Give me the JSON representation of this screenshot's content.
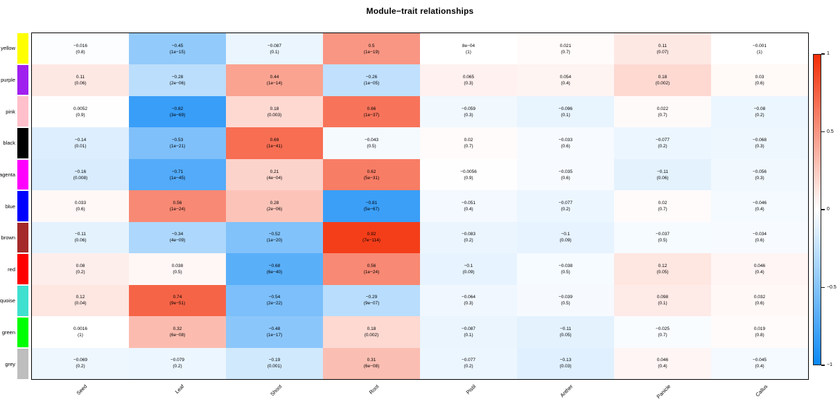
{
  "title": "Module−trait relationships",
  "colorbar": {
    "tick_labels": [
      "1",
      "0.5",
      "0",
      "−0.5",
      "−1"
    ],
    "tick_values": [
      1,
      0.5,
      0,
      -0.5,
      -1
    ],
    "max_color": "#F32D06",
    "mid_color": "#FFFFFF",
    "min_color": "#0D89F6"
  },
  "chart_data": {
    "type": "heatmap",
    "title": "Module−trait relationships",
    "legend_position": "right",
    "value_range": [
      -1,
      1
    ],
    "columns": [
      "Seed",
      "Leaf",
      "Shoot",
      "Root",
      "Pistil",
      "Anther",
      "Panicle",
      "Callus"
    ],
    "rows": [
      {
        "module": "yellow",
        "module_color": "#FFFF00",
        "cells": [
          {
            "value": -0.016,
            "cor": "−0.016",
            "p": "(0.8)"
          },
          {
            "value": -0.45,
            "cor": "−0.45",
            "p": "(1e−15)"
          },
          {
            "value": -0.087,
            "cor": "−0.087",
            "p": "(0.1)"
          },
          {
            "value": 0.5,
            "cor": "0.5",
            "p": "(1e−19)"
          },
          {
            "value": 0.0008,
            "cor": "8e−04",
            "p": "(1)"
          },
          {
            "value": 0.021,
            "cor": "0.021",
            "p": "(0.7)"
          },
          {
            "value": 0.11,
            "cor": "0.11",
            "p": "(0.07)"
          },
          {
            "value": -0.001,
            "cor": "−0.001",
            "p": "(1)"
          }
        ]
      },
      {
        "module": "purple",
        "module_color": "#A020F0",
        "cells": [
          {
            "value": 0.11,
            "cor": "0.11",
            "p": "(0.06)"
          },
          {
            "value": -0.28,
            "cor": "−0.28",
            "p": "(2e−06)"
          },
          {
            "value": 0.44,
            "cor": "0.44",
            "p": "(1e−14)"
          },
          {
            "value": -0.26,
            "cor": "−0.26",
            "p": "(1e−05)"
          },
          {
            "value": 0.065,
            "cor": "0.065",
            "p": "(0.3)"
          },
          {
            "value": 0.054,
            "cor": "0.054",
            "p": "(0.4)"
          },
          {
            "value": 0.18,
            "cor": "0.18",
            "p": "(0.002)"
          },
          {
            "value": 0.03,
            "cor": "0.03",
            "p": "(0.6)"
          }
        ]
      },
      {
        "module": "pink",
        "module_color": "#FFC0CB",
        "cells": [
          {
            "value": 0.0052,
            "cor": "0.0052",
            "p": "(0.9)"
          },
          {
            "value": -0.82,
            "cor": "−0.82",
            "p": "(3e−69)"
          },
          {
            "value": 0.18,
            "cor": "0.18",
            "p": "(0.003)"
          },
          {
            "value": 0.66,
            "cor": "0.66",
            "p": "(1e−37)"
          },
          {
            "value": -0.059,
            "cor": "−0.059",
            "p": "(0.3)"
          },
          {
            "value": -0.096,
            "cor": "−0.096",
            "p": "(0.1)"
          },
          {
            "value": 0.022,
            "cor": "0.022",
            "p": "(0.7)"
          },
          {
            "value": -0.08,
            "cor": "−0.08",
            "p": "(0.2)"
          }
        ]
      },
      {
        "module": "black",
        "module_color": "#000000",
        "cells": [
          {
            "value": -0.14,
            "cor": "−0.14",
            "p": "(0.01)"
          },
          {
            "value": -0.53,
            "cor": "−0.53",
            "p": "(1e−21)"
          },
          {
            "value": 0.69,
            "cor": "0.69",
            "p": "(1e−41)"
          },
          {
            "value": -0.043,
            "cor": "−0.043",
            "p": "(0.5)"
          },
          {
            "value": 0.02,
            "cor": "0.02",
            "p": "(0.7)"
          },
          {
            "value": -0.033,
            "cor": "−0.033",
            "p": "(0.6)"
          },
          {
            "value": -0.077,
            "cor": "−0.077",
            "p": "(0.2)"
          },
          {
            "value": -0.068,
            "cor": "−0.068",
            "p": "(0.3)"
          }
        ]
      },
      {
        "module": "magenta",
        "module_color": "#FF00FF",
        "cells": [
          {
            "value": -0.16,
            "cor": "−0.16",
            "p": "(0.008)"
          },
          {
            "value": -0.71,
            "cor": "−0.71",
            "p": "(1e−45)"
          },
          {
            "value": 0.21,
            "cor": "0.21",
            "p": "(4e−04)"
          },
          {
            "value": 0.62,
            "cor": "0.62",
            "p": "(5e−31)"
          },
          {
            "value": -0.0056,
            "cor": "−0.0056",
            "p": "(0.9)"
          },
          {
            "value": -0.035,
            "cor": "−0.035",
            "p": "(0.6)"
          },
          {
            "value": -0.11,
            "cor": "−0.11",
            "p": "(0.06)"
          },
          {
            "value": -0.056,
            "cor": "−0.056",
            "p": "(0.3)"
          }
        ]
      },
      {
        "module": "blue",
        "module_color": "#0000FF",
        "cells": [
          {
            "value": 0.033,
            "cor": "0.033",
            "p": "(0.6)"
          },
          {
            "value": 0.56,
            "cor": "0.56",
            "p": "(1e−24)"
          },
          {
            "value": 0.28,
            "cor": "0.28",
            "p": "(2e−06)"
          },
          {
            "value": -0.81,
            "cor": "−0.81",
            "p": "(5e−67)"
          },
          {
            "value": -0.051,
            "cor": "−0.051",
            "p": "(0.4)"
          },
          {
            "value": -0.077,
            "cor": "−0.077",
            "p": "(0.2)"
          },
          {
            "value": 0.02,
            "cor": "0.02",
            "p": "(0.7)"
          },
          {
            "value": -0.046,
            "cor": "−0.046",
            "p": "(0.4)"
          }
        ]
      },
      {
        "module": "brown",
        "module_color": "#A52A2A",
        "cells": [
          {
            "value": -0.11,
            "cor": "−0.11",
            "p": "(0.06)"
          },
          {
            "value": -0.34,
            "cor": "−0.34",
            "p": "(4e−09)"
          },
          {
            "value": -0.52,
            "cor": "−0.52",
            "p": "(1e−20)"
          },
          {
            "value": 0.92,
            "cor": "0.92",
            "p": "(7e−114)"
          },
          {
            "value": -0.083,
            "cor": "−0.083",
            "p": "(0.2)"
          },
          {
            "value": -0.1,
            "cor": "−0.1",
            "p": "(0.09)"
          },
          {
            "value": -0.037,
            "cor": "−0.037",
            "p": "(0.5)"
          },
          {
            "value": -0.034,
            "cor": "−0.034",
            "p": "(0.6)"
          }
        ]
      },
      {
        "module": "red",
        "module_color": "#FF0000",
        "cells": [
          {
            "value": 0.08,
            "cor": "0.08",
            "p": "(0.2)"
          },
          {
            "value": 0.038,
            "cor": "0.038",
            "p": "(0.5)"
          },
          {
            "value": -0.68,
            "cor": "−0.68",
            "p": "(6e−40)"
          },
          {
            "value": 0.56,
            "cor": "0.56",
            "p": "(1e−24)"
          },
          {
            "value": -0.1,
            "cor": "−0.1",
            "p": "(0.09)"
          },
          {
            "value": -0.038,
            "cor": "−0.038",
            "p": "(0.5)"
          },
          {
            "value": 0.12,
            "cor": "0.12",
            "p": "(0.05)"
          },
          {
            "value": 0.046,
            "cor": "0.046",
            "p": "(0.4)"
          }
        ]
      },
      {
        "module": "turquoise",
        "module_color": "#40E0D0",
        "cells": [
          {
            "value": 0.12,
            "cor": "0.12",
            "p": "(0.04)"
          },
          {
            "value": 0.74,
            "cor": "0.74",
            "p": "(9e−51)"
          },
          {
            "value": -0.54,
            "cor": "−0.54",
            "p": "(2e−22)"
          },
          {
            "value": -0.29,
            "cor": "−0.29",
            "p": "(9e−07)"
          },
          {
            "value": -0.064,
            "cor": "−0.064",
            "p": "(0.3)"
          },
          {
            "value": -0.039,
            "cor": "−0.039",
            "p": "(0.5)"
          },
          {
            "value": 0.098,
            "cor": "0.098",
            "p": "(0.1)"
          },
          {
            "value": 0.032,
            "cor": "0.032",
            "p": "(0.6)"
          }
        ]
      },
      {
        "module": "green",
        "module_color": "#00FF00",
        "cells": [
          {
            "value": 0.0016,
            "cor": "0.0016",
            "p": "(1)"
          },
          {
            "value": 0.32,
            "cor": "0.32",
            "p": "(6e−08)"
          },
          {
            "value": -0.48,
            "cor": "−0.48",
            "p": "(1e−17)"
          },
          {
            "value": 0.18,
            "cor": "0.18",
            "p": "(0.002)"
          },
          {
            "value": -0.087,
            "cor": "−0.087",
            "p": "(0.1)"
          },
          {
            "value": -0.11,
            "cor": "−0.11",
            "p": "(0.05)"
          },
          {
            "value": -0.025,
            "cor": "−0.025",
            "p": "(0.7)"
          },
          {
            "value": 0.019,
            "cor": "0.019",
            "p": "(0.8)"
          }
        ]
      },
      {
        "module": "grey",
        "module_color": "#BEBEBE",
        "cells": [
          {
            "value": -0.069,
            "cor": "−0.069",
            "p": "(0.2)"
          },
          {
            "value": -0.079,
            "cor": "−0.079",
            "p": "(0.2)"
          },
          {
            "value": -0.19,
            "cor": "−0.19",
            "p": "(0.001)"
          },
          {
            "value": 0.31,
            "cor": "0.31",
            "p": "(6e−08)"
          },
          {
            "value": -0.077,
            "cor": "−0.077",
            "p": "(0.2)"
          },
          {
            "value": -0.13,
            "cor": "−0.13",
            "p": "(0.03)"
          },
          {
            "value": 0.046,
            "cor": "0.046",
            "p": "(0.4)"
          },
          {
            "value": -0.045,
            "cor": "−0.045",
            "p": "(0.4)"
          }
        ]
      }
    ]
  }
}
